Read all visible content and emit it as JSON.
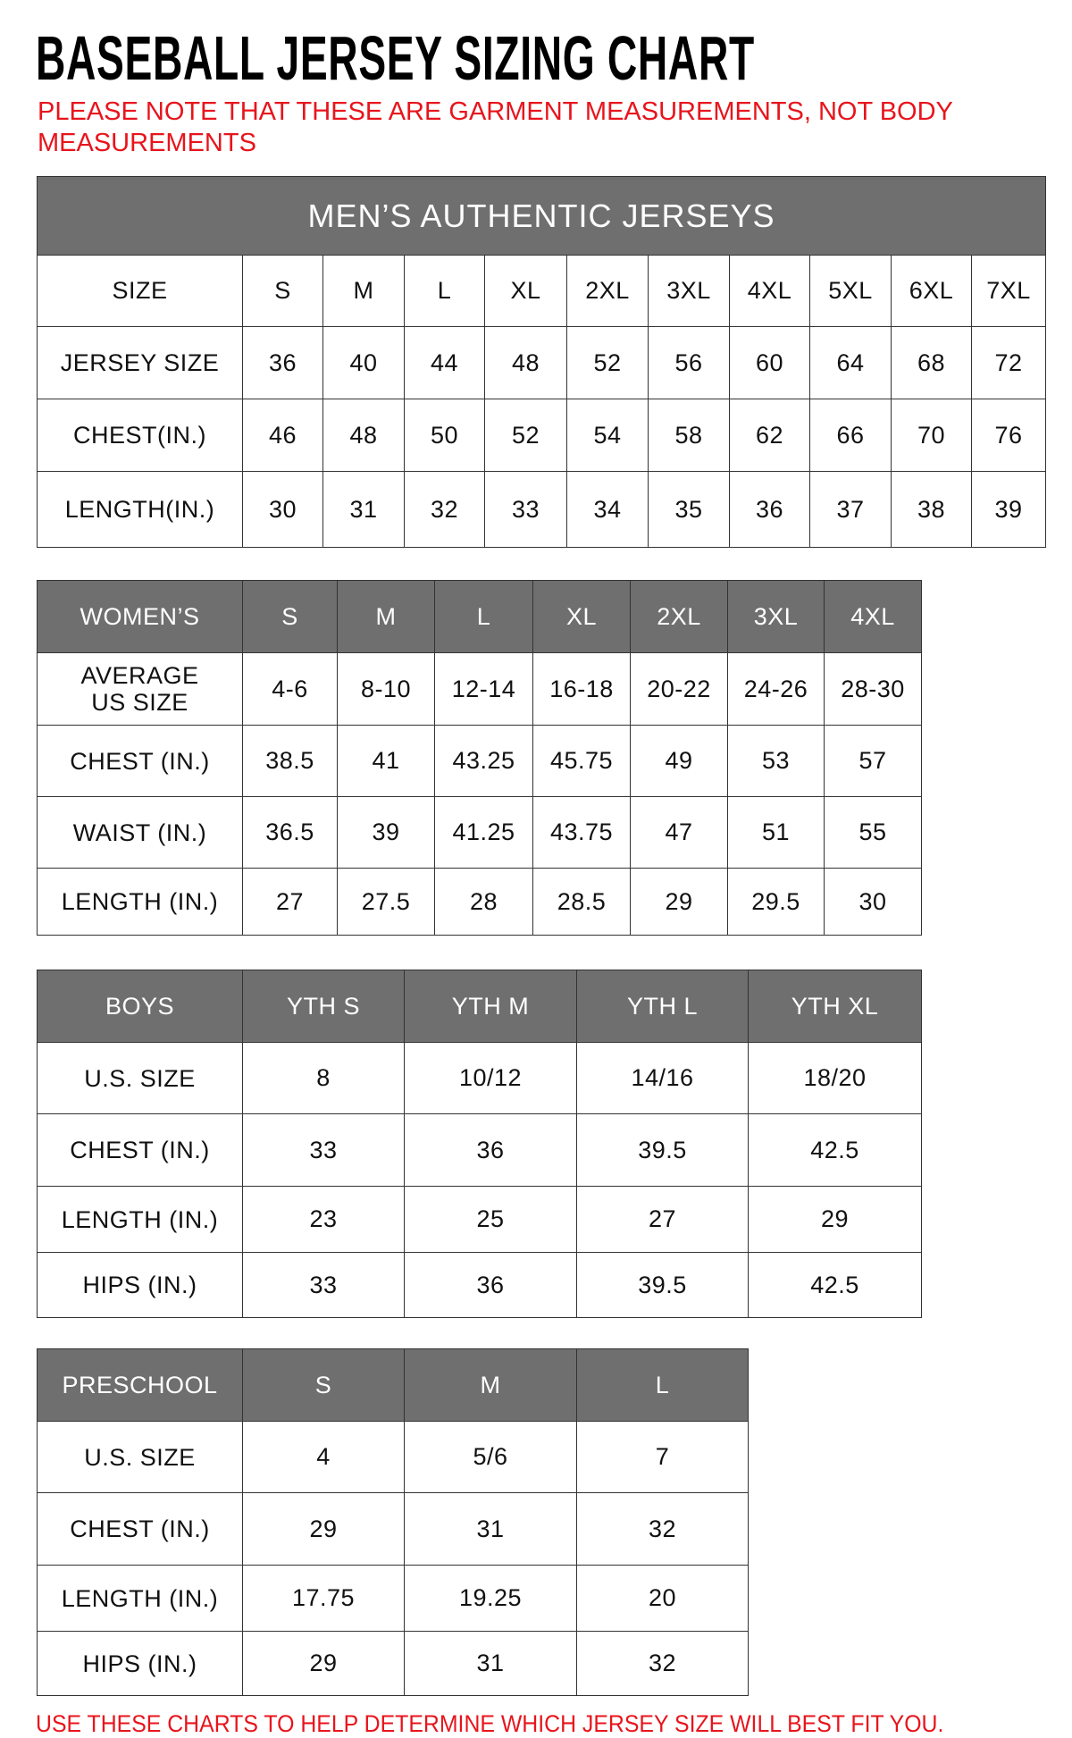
{
  "title": "BASEBALL JERSEY SIZING CHART",
  "note": "PLEASE NOTE THAT THESE ARE GARMENT MEASUREMENTS, NOT BODY MEASUREMENTS",
  "footer": "USE THESE CHARTS TO HELP DETERMINE WHICH JERSEY SIZE WILL BEST FIT YOU.",
  "colors": {
    "header_gray": "#6f6f6f",
    "note_red": "#e8141c"
  },
  "mens": {
    "caption": "MEN’S AUTHENTIC JERSEYS",
    "header": [
      "SIZE",
      "S",
      "M",
      "L",
      "XL",
      "2XL",
      "3XL",
      "4XL",
      "5XL",
      "6XL",
      "7XL"
    ],
    "rows": [
      [
        "JERSEY SIZE",
        "36",
        "40",
        "44",
        "48",
        "52",
        "56",
        "60",
        "64",
        "68",
        "72"
      ],
      [
        "CHEST(IN.)",
        "46",
        "48",
        "50",
        "52",
        "54",
        "58",
        "62",
        "66",
        "70",
        "76"
      ],
      [
        "LENGTH(IN.)",
        "30",
        "31",
        "32",
        "33",
        "34",
        "35",
        "36",
        "37",
        "38",
        "39"
      ]
    ]
  },
  "womens": {
    "header": [
      "WOMEN’S",
      "S",
      "M",
      "L",
      "XL",
      "2XL",
      "3XL",
      "4XL"
    ],
    "rows": [
      [
        "AVERAGE US SIZE",
        "4-6",
        "8-10",
        "12-14",
        "16-18",
        "20-22",
        "24-26",
        "28-30"
      ],
      [
        "CHEST (IN.)",
        "38.5",
        "41",
        "43.25",
        "45.75",
        "49",
        "53",
        "57"
      ],
      [
        "WAIST (IN.)",
        "36.5",
        "39",
        "41.25",
        "43.75",
        "47",
        "51",
        "55"
      ],
      [
        "LENGTH (IN.)",
        "27",
        "27.5",
        "28",
        "28.5",
        "29",
        "29.5",
        "30"
      ]
    ]
  },
  "boys": {
    "header": [
      "BOYS",
      "YTH S",
      "YTH M",
      "YTH L",
      "YTH XL"
    ],
    "rows": [
      [
        "U.S. SIZE",
        "8",
        "10/12",
        "14/16",
        "18/20"
      ],
      [
        "CHEST (IN.)",
        "33",
        "36",
        "39.5",
        "42.5"
      ],
      [
        "LENGTH (IN.)",
        "23",
        "25",
        "27",
        "29"
      ],
      [
        "HIPS (IN.)",
        "33",
        "36",
        "39.5",
        "42.5"
      ]
    ]
  },
  "preschool": {
    "header": [
      "PRESCHOOL",
      "S",
      "M",
      "L"
    ],
    "rows": [
      [
        "U.S. SIZE",
        "4",
        "5/6",
        "7"
      ],
      [
        "CHEST (IN.)",
        "29",
        "31",
        "32"
      ],
      [
        "LENGTH (IN.)",
        "17.75",
        "19.25",
        "20"
      ],
      [
        "HIPS (IN.)",
        "29",
        "31",
        "32"
      ]
    ]
  }
}
